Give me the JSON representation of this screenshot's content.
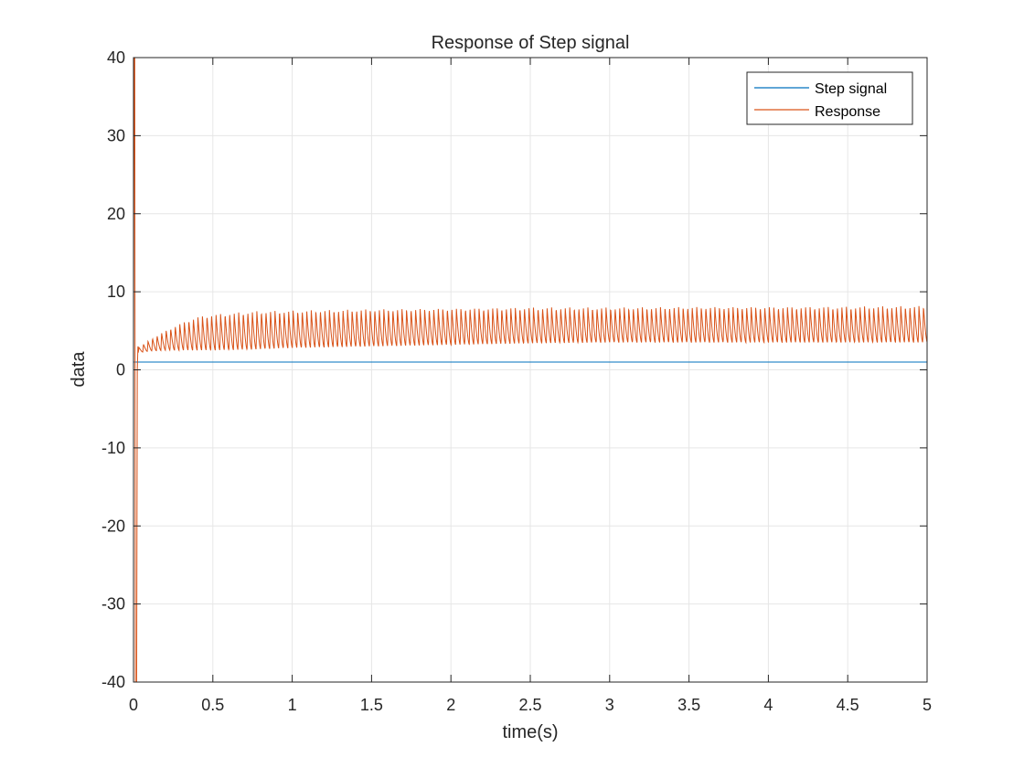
{
  "chart_data": {
    "type": "line",
    "title": "Response of Step signal",
    "xlabel": "time(s)",
    "ylabel": "data",
    "xlim": [
      0,
      5
    ],
    "ylim": [
      -40,
      40
    ],
    "x_ticks": [
      0,
      0.5,
      1,
      1.5,
      2,
      2.5,
      3,
      3.5,
      4,
      4.5,
      5
    ],
    "x_tick_labels": [
      "0",
      "0.5",
      "1",
      "1.5",
      "2",
      "2.5",
      "3",
      "3.5",
      "4",
      "4.5",
      "5"
    ],
    "y_ticks": [
      -40,
      -30,
      -20,
      -10,
      0,
      10,
      20,
      30,
      40
    ],
    "y_tick_labels": [
      "-40",
      "-30",
      "-20",
      "-10",
      "0",
      "10",
      "20",
      "30",
      "40"
    ],
    "grid": true,
    "legend_position": "top-right",
    "series": [
      {
        "name": "Step signal",
        "color": "#0072BD",
        "x": [
          0,
          5
        ],
        "y": [
          1,
          1
        ]
      },
      {
        "name": "Response",
        "color": "#D95319",
        "oscillation_frequency_hz": 35,
        "initial_transient": {
          "x": [
            0,
            0.004,
            0.008,
            0.012,
            0.016,
            0.02,
            0.024,
            0.028,
            0.032
          ],
          "y": [
            0,
            40,
            40,
            -40,
            -40,
            -40,
            0,
            3,
            2.5
          ]
        },
        "envelope": {
          "x": [
            0.03,
            0.1,
            0.2,
            0.3,
            0.4,
            0.5,
            0.75,
            1.0,
            1.5,
            2.0,
            2.5,
            3.0,
            3.5,
            4.0,
            4.5,
            5.0
          ],
          "upper": [
            2.8,
            3.8,
            5.0,
            6.0,
            6.8,
            7.1,
            7.5,
            7.6,
            7.8,
            7.9,
            8.0,
            8.0,
            8.1,
            8.1,
            8.1,
            8.2
          ],
          "lower": [
            2.2,
            2.4,
            2.5,
            2.5,
            2.5,
            2.5,
            2.6,
            2.8,
            3.0,
            3.2,
            3.4,
            3.5,
            3.5,
            3.5,
            3.5,
            3.5
          ]
        }
      }
    ]
  }
}
